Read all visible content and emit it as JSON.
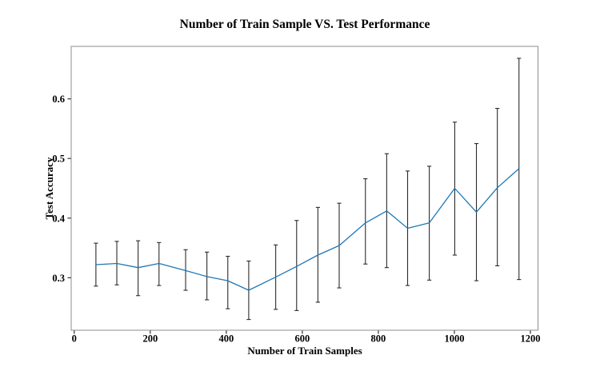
{
  "figure": {
    "background": "#ffffff"
  },
  "chart_data": {
    "type": "line",
    "title": "Number of Train Sample VS. Test Performance",
    "xlabel": "Number of Train Samples",
    "ylabel": "Test Accuracy",
    "xlim": [
      -8,
      1220
    ],
    "ylim": [
      0.212,
      0.688
    ],
    "xticks": [
      0,
      200,
      400,
      600,
      800,
      1000,
      1200
    ],
    "xtick_labels": [
      "0",
      "200",
      "400",
      "600",
      "800",
      "1000",
      "1200"
    ],
    "yticks": [
      0.3,
      0.4,
      0.5,
      0.6
    ],
    "ytick_labels": [
      "0.3",
      "0.4",
      "0.5",
      "0.6"
    ],
    "grid": false,
    "legend": null,
    "series": [
      {
        "name": "test-accuracy-vs-train-samples",
        "x": [
          57,
          112,
          168,
          223,
          293,
          349,
          404,
          459,
          530,
          585,
          641,
          697,
          766,
          822,
          877,
          934,
          1001,
          1058,
          1113,
          1170
        ],
        "y": [
          0.322,
          0.324,
          0.317,
          0.324,
          0.312,
          0.302,
          0.295,
          0.279,
          0.301,
          0.319,
          0.338,
          0.354,
          0.392,
          0.412,
          0.383,
          0.392,
          0.45,
          0.41,
          0.451,
          0.483
        ],
        "err_low": [
          0.286,
          0.288,
          0.27,
          0.287,
          0.279,
          0.263,
          0.248,
          0.23,
          0.247,
          0.245,
          0.259,
          0.283,
          0.323,
          0.317,
          0.287,
          0.296,
          0.338,
          0.295,
          0.32,
          0.297
        ],
        "err_high": [
          0.358,
          0.361,
          0.362,
          0.359,
          0.347,
          0.343,
          0.336,
          0.328,
          0.355,
          0.396,
          0.418,
          0.425,
          0.466,
          0.508,
          0.479,
          0.487,
          0.561,
          0.525,
          0.584,
          0.668
        ]
      }
    ],
    "colors": {
      "line": "#1f77b4",
      "errorbar": "#2b2b2b",
      "spine": "#8c8c8c",
      "tick": "#333333",
      "text": "#000000"
    }
  }
}
